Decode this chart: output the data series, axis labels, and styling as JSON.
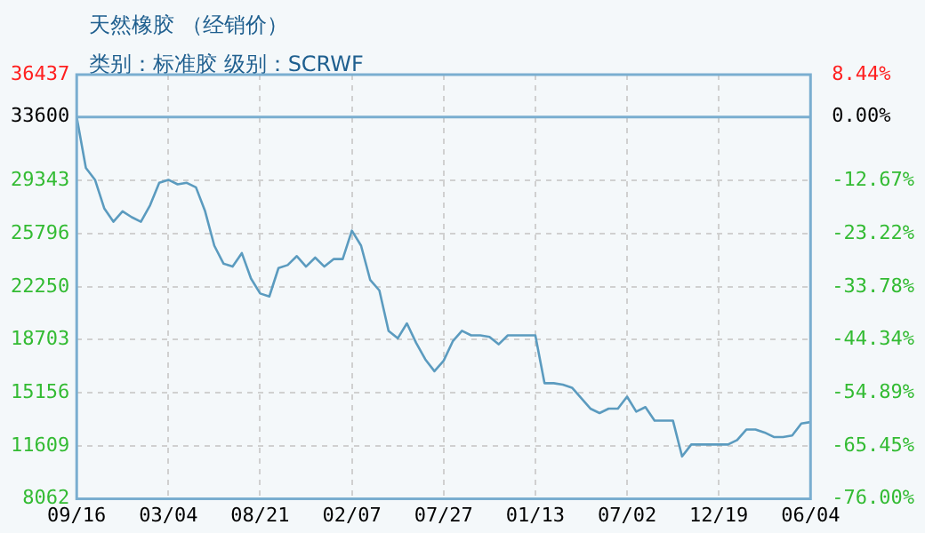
{
  "chart_data": {
    "type": "line",
    "title": "天然橡胶 （经销价）",
    "subtitle": "类别：标准胶 级别：SCRWF",
    "categories": [
      "09/16",
      null,
      null,
      null,
      null,
      null,
      null,
      null,
      null,
      null,
      "03/04",
      null,
      null,
      null,
      null,
      null,
      null,
      null,
      null,
      null,
      "08/21",
      null,
      null,
      null,
      null,
      null,
      null,
      null,
      null,
      null,
      "02/07",
      null,
      null,
      null,
      null,
      null,
      null,
      null,
      null,
      null,
      "07/27",
      null,
      null,
      null,
      null,
      null,
      null,
      null,
      null,
      null,
      "01/13",
      null,
      null,
      null,
      null,
      null,
      null,
      null,
      null,
      null,
      "07/02",
      null,
      null,
      null,
      null,
      null,
      null,
      null,
      null,
      null,
      "12/19",
      null,
      null,
      null,
      null,
      null,
      null,
      null,
      null,
      null,
      "06/04"
    ],
    "series": [
      {
        "color": "#5b9bbf",
        "values": [
          33600,
          30200,
          29400,
          27500,
          26600,
          27300,
          26900,
          26600,
          27700,
          29200,
          29400,
          29100,
          29200,
          28900,
          27300,
          25000,
          23800,
          23600,
          24500,
          22800,
          21800,
          21600,
          23500,
          23700,
          24300,
          23600,
          24200,
          23600,
          24100,
          24100,
          26000,
          25000,
          22700,
          22000,
          19300,
          18800,
          19800,
          18500,
          17400,
          16600,
          17300,
          18600,
          19300,
          19000,
          19000,
          18900,
          18400,
          19000,
          19000,
          19000,
          19000,
          15800,
          15800,
          15700,
          15500,
          14800,
          14100,
          13800,
          14100,
          14100,
          14900,
          13900,
          14200,
          13300,
          13300,
          13300,
          10900,
          11700,
          11700,
          11700,
          11700,
          11700,
          12000,
          12700,
          12700,
          12500,
          12200,
          12200,
          12300,
          13100,
          13200
        ]
      }
    ],
    "ylim": [
      8062,
      36437
    ],
    "yticks": [
      8062,
      11609,
      15156,
      18703,
      22250,
      25796,
      29343,
      33600,
      36437
    ],
    "y2lim": [
      -76,
      8.44
    ],
    "y2ticks": [
      {
        "value": -76,
        "label": "-76.00%"
      },
      {
        "value": -65.45,
        "label": "-65.45%"
      },
      {
        "value": -54.89,
        "label": "-54.89%"
      },
      {
        "value": -44.34,
        "label": "-44.34%"
      },
      {
        "value": -33.78,
        "label": "-33.78%"
      },
      {
        "value": -23.22,
        "label": "-23.22%"
      },
      {
        "value": -12.67,
        "label": "-12.67%"
      },
      {
        "value": 0,
        "label": "0.00%"
      },
      {
        "value": 8.44,
        "label": "8.44%"
      }
    ],
    "ref_lines": [
      {
        "axis": "y",
        "value": 33600,
        "color": "#7aaed0"
      }
    ],
    "grid": true,
    "legend": false,
    "marker": "none",
    "line_style": "solid"
  }
}
